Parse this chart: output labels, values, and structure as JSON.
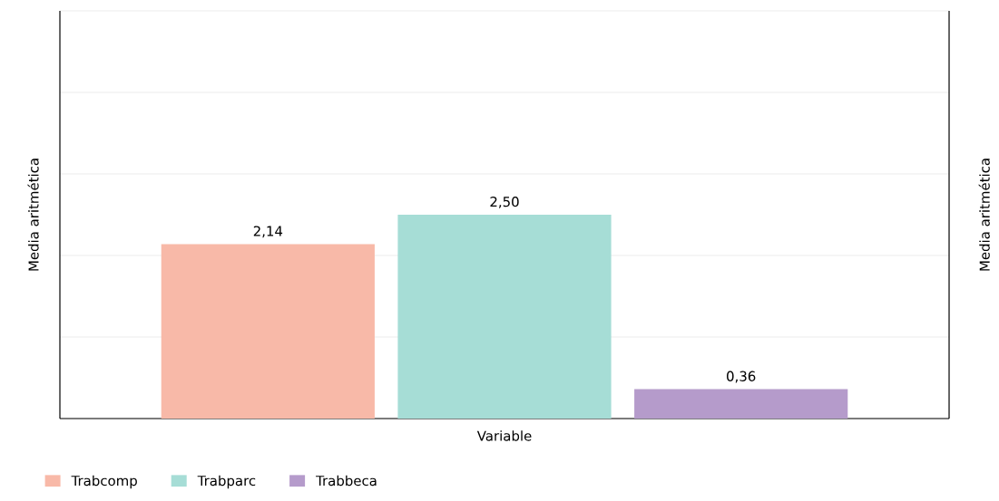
{
  "chart_data": {
    "type": "bar",
    "xlabel": "Variable",
    "ylabel": "Media aritmética",
    "y2label": "Media aritmética",
    "categories": [
      null
    ],
    "series": [
      {
        "name": "Trabcomp",
        "color": "#f8b9a8",
        "values": [
          2.14
        ],
        "value_labels": [
          "2,14"
        ]
      },
      {
        "name": "Trabparc",
        "color": "#a6ddd6",
        "values": [
          2.5
        ],
        "value_labels": [
          "2,50"
        ]
      },
      {
        "name": "Trabbeca",
        "color": "#b59bcb",
        "values": [
          0.36
        ],
        "value_labels": [
          "0,36"
        ]
      }
    ],
    "ylim": [
      0,
      5
    ],
    "yticks": [
      {
        "value": 0,
        "label": null
      },
      {
        "value": 1,
        "label": null
      },
      {
        "value": 2,
        "label": null
      },
      {
        "value": 3,
        "label": null
      },
      {
        "value": 4,
        "label": null
      },
      {
        "value": 5,
        "label": null
      }
    ],
    "grid": "y",
    "legend": "bottom"
  }
}
